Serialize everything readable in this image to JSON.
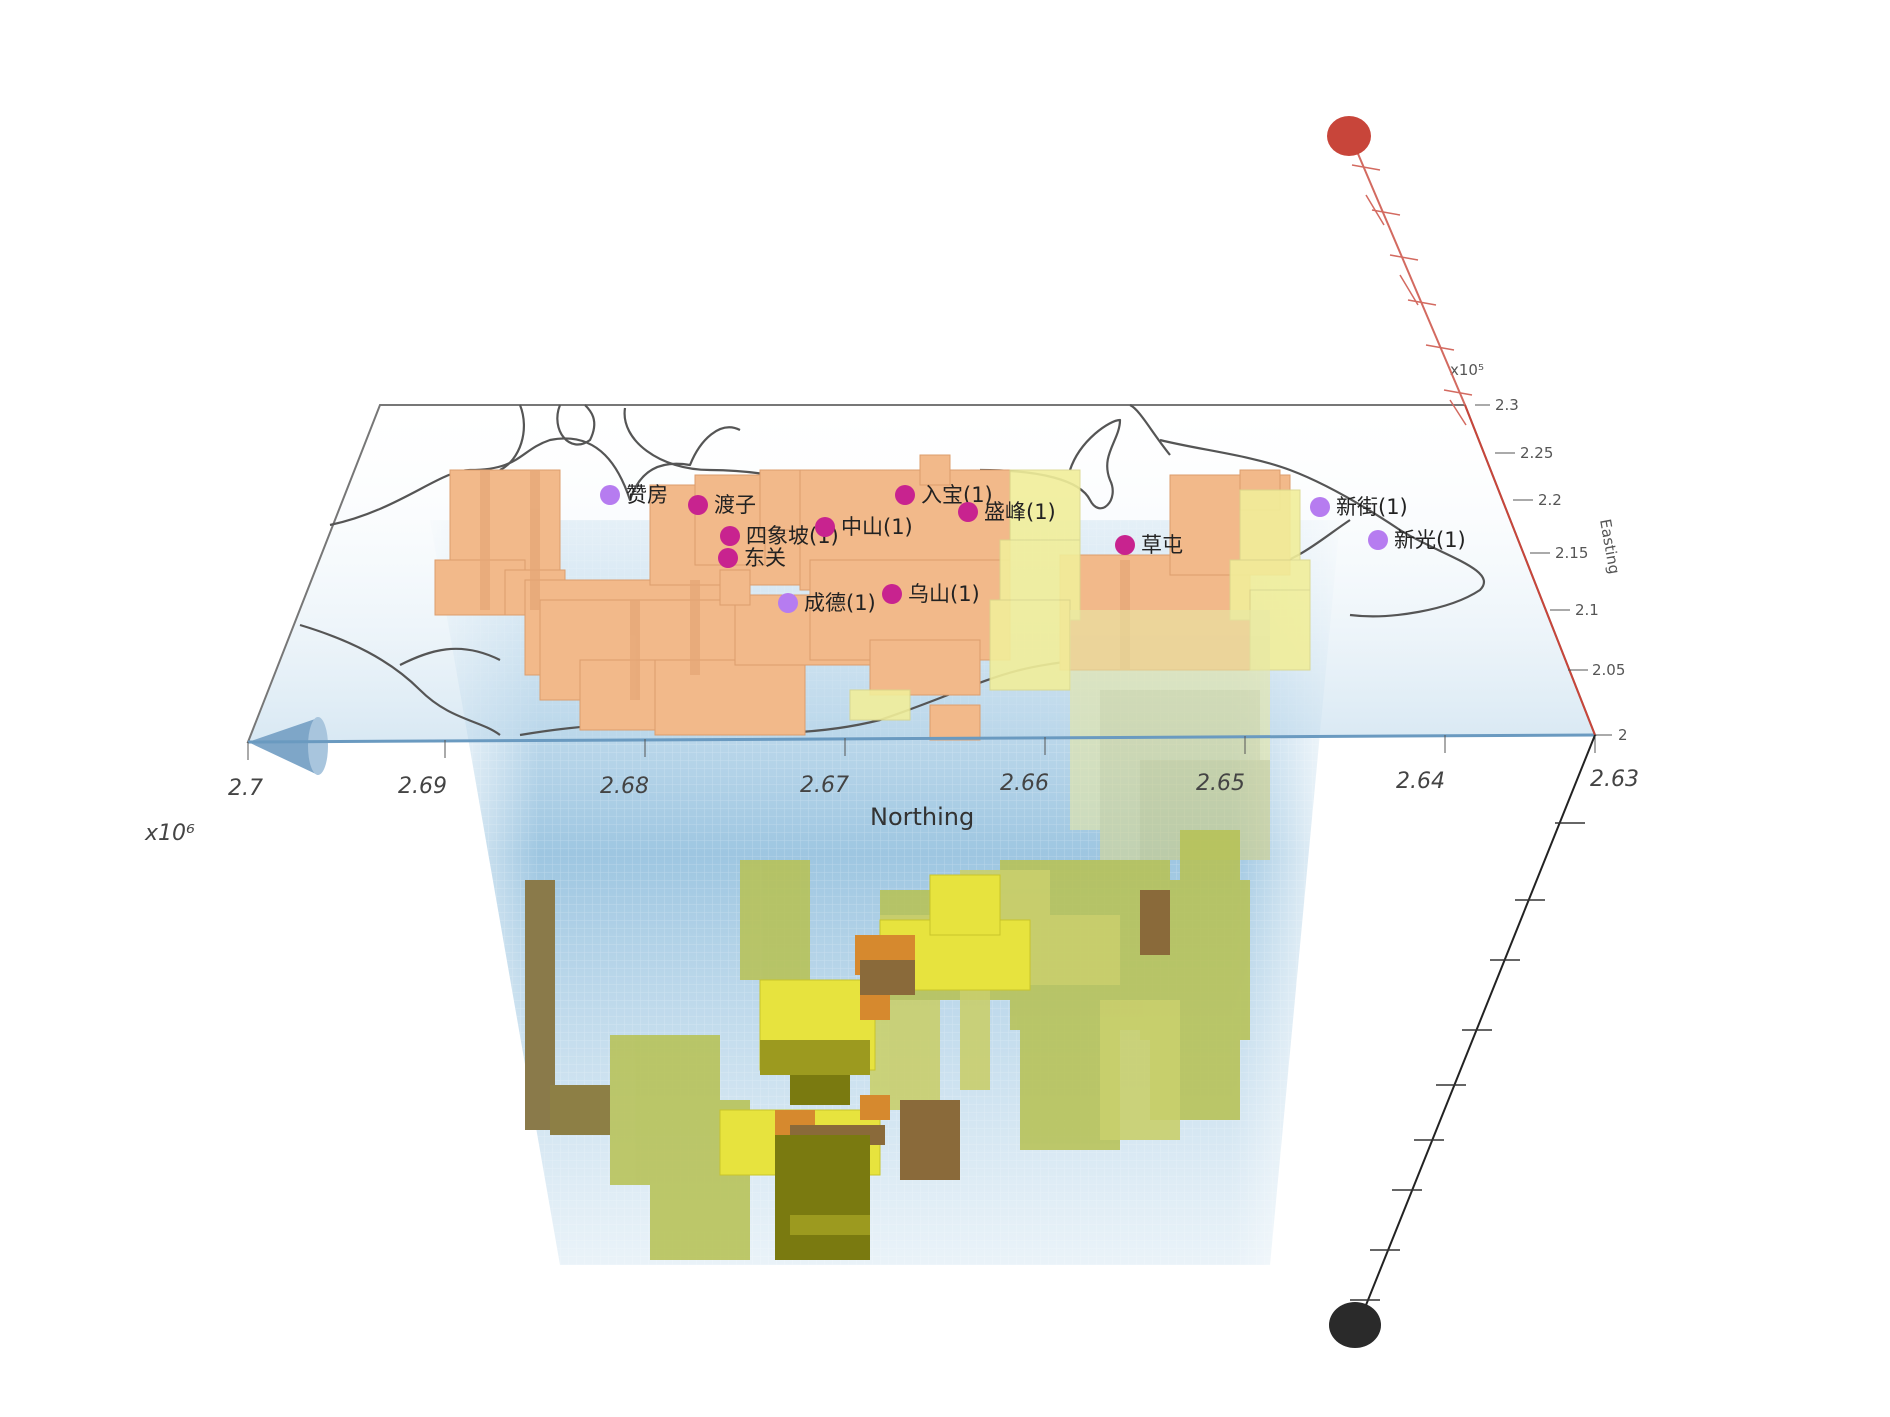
{
  "chart_data": {
    "type": "3d-voxel-volume",
    "title": "",
    "northing_axis": {
      "label": "Northing",
      "exponent": "x10⁶",
      "ticks": [
        "2.7",
        "2.69",
        "2.68",
        "2.67",
        "2.66",
        "2.65",
        "2.64",
        "2.63"
      ]
    },
    "easting_axis": {
      "label": "Easting",
      "exponent": "x10⁵",
      "ticks": [
        "2.3",
        "2.25",
        "2.2",
        "2.15",
        "2.1",
        "2.05",
        "2"
      ]
    },
    "stations": [
      {
        "name": "赞房",
        "type": "violet"
      },
      {
        "name": "渡子",
        "type": "magenta"
      },
      {
        "name": "入宝(1)",
        "type": "magenta"
      },
      {
        "name": "盛峰(1)",
        "type": "magenta"
      },
      {
        "name": "四象坡(1)",
        "type": "magenta"
      },
      {
        "name": "中山(1)",
        "type": "magenta"
      },
      {
        "name": "东关",
        "type": "magenta"
      },
      {
        "name": "草屯",
        "type": "magenta"
      },
      {
        "name": "成德(1)",
        "type": "violet"
      },
      {
        "name": "乌山(1)",
        "type": "magenta"
      },
      {
        "name": "新街(1)",
        "type": "violet"
      },
      {
        "name": "新光(1)",
        "type": "violet"
      }
    ],
    "colors": {
      "surface_blocks": "#f2b98a",
      "pale_yellow": "#f1ee9a",
      "olive": "#b7c256",
      "deep_olive": "#7a7a10",
      "orange": "#d6892e",
      "brown": "#8a6a3a",
      "water": "#8fc0dd",
      "magenta_marker": "#c8238f",
      "violet_marker": "#b67cf0",
      "red_pole": "#c8453a"
    }
  }
}
